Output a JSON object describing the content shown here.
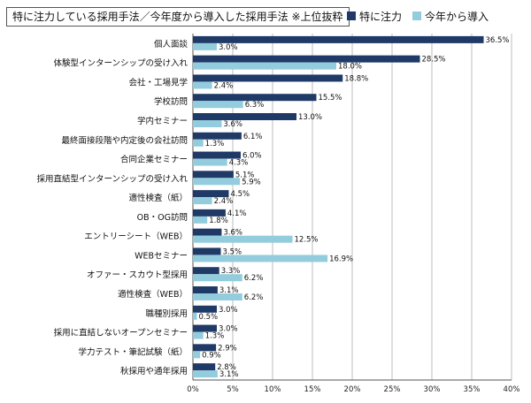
{
  "title": "特に注力している採用手法／今年度から導入した採用手法 ※上位抜粋",
  "legend": [
    {
      "name": "特に注力",
      "color": "#1f3a66"
    },
    {
      "name": "今年から導入",
      "color": "#93cddd"
    }
  ],
  "chart_data": {
    "type": "bar",
    "orientation": "horizontal",
    "title": "特に注力している採用手法／今年度から導入した採用手法 ※上位抜粋",
    "categories": [
      "個人面談",
      "体験型インターンシップの受け入れ",
      "会社・工場見学",
      "学校訪問",
      "学内セミナー",
      "最終面接段階や内定後の会社訪問",
      "合同企業セミナー",
      "採用直結型インターンシップの受け入れ",
      "適性検査（紙）",
      "OB・OG訪問",
      "エントリーシート（WEB）",
      "WEBセミナー",
      "オファー・スカウト型採用",
      "適性検査（WEB）",
      "職種別採用",
      "採用に直結しないオープンセミナー",
      "学力テスト・筆記試験（紙）",
      "秋採用や通年採用"
    ],
    "series": [
      {
        "name": "特に注力",
        "color": "#1f3a66",
        "values": [
          36.5,
          28.5,
          18.8,
          15.5,
          13.0,
          6.1,
          6.0,
          5.1,
          4.5,
          4.1,
          3.6,
          3.5,
          3.3,
          3.1,
          3.0,
          3.0,
          2.9,
          2.8
        ]
      },
      {
        "name": "今年から導入",
        "color": "#93cddd",
        "values": [
          3.0,
          18.0,
          2.4,
          6.3,
          3.6,
          1.3,
          4.3,
          5.9,
          2.4,
          1.8,
          12.5,
          16.9,
          6.2,
          6.2,
          0.5,
          1.3,
          0.9,
          3.1
        ]
      }
    ],
    "xlim": [
      0,
      40
    ],
    "xticks": [
      "0%",
      "5%",
      "10%",
      "15%",
      "20%",
      "25%",
      "30%",
      "35%",
      "40%"
    ],
    "value_suffix": "%",
    "grid": "vertical",
    "legend_position": "top-right"
  }
}
